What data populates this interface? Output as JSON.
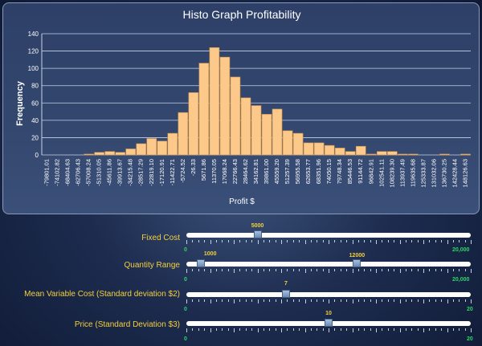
{
  "chart_data": {
    "type": "bar",
    "title": "Histo Graph Profitability",
    "xlabel": "Profit $",
    "ylabel": "Frequency",
    "ylim": [
      0,
      140
    ],
    "yticks": [
      0,
      20,
      40,
      60,
      80,
      100,
      120,
      140
    ],
    "grid": true,
    "categories": [
      "-79801.01",
      "-74102.82",
      "-68404.63",
      "-62706.43",
      "-57008.24",
      "-51310.05",
      "-45611.86",
      "-39913.67",
      "-34215.48",
      "-28517.29",
      "-22819.10",
      "-17120.91",
      "-11422.71",
      "-5724.52",
      "-26.33",
      "5671.86",
      "11370.05",
      "17068.24",
      "22766.43",
      "28464.62",
      "34162.81",
      "39861.00",
      "45559.20",
      "51257.39",
      "56955.58",
      "62653.77",
      "68351.96",
      "74050.15",
      "79748.34",
      "85446.53",
      "91144.72",
      "96842.91",
      "102541.11",
      "108239.30",
      "113937.49",
      "119635.68",
      "125333.87",
      "131032.06",
      "136730.25",
      "142428.44",
      "148126.63"
    ],
    "values": [
      0,
      0,
      0,
      0,
      1,
      3,
      4,
      3,
      7,
      13,
      19,
      16,
      25,
      49,
      72,
      106,
      124,
      113,
      90,
      66,
      57,
      47,
      53,
      28,
      25,
      14,
      14,
      11,
      8,
      4,
      10,
      1,
      4,
      4,
      1,
      1,
      0,
      0,
      1,
      0,
      1
    ],
    "bar_color": "#fcc98a",
    "bar_edge": "#c98f4a"
  },
  "sliders": [
    {
      "label": "Fixed Cost",
      "value": "5000",
      "min_label": "0",
      "max_label": "20,000",
      "fraction": 0.25
    },
    {
      "label": "Quantity Range",
      "low_value": "1000",
      "high_value": "12000",
      "min_label": "0",
      "max_label": "20,000",
      "low_fraction": 0.05,
      "high_fraction": 0.6
    },
    {
      "label": "Mean Variable Cost (Standard deviation $2)",
      "value": "7",
      "min_label": "0",
      "max_label": "20",
      "fraction": 0.35
    },
    {
      "label": "Price (Standard Deviation $3)",
      "value": "10",
      "min_label": "0",
      "max_label": "20",
      "fraction": 0.5
    }
  ],
  "colors": {
    "label": "#f5d03a",
    "range": "#2bd66a",
    "track": "#ffffff"
  }
}
